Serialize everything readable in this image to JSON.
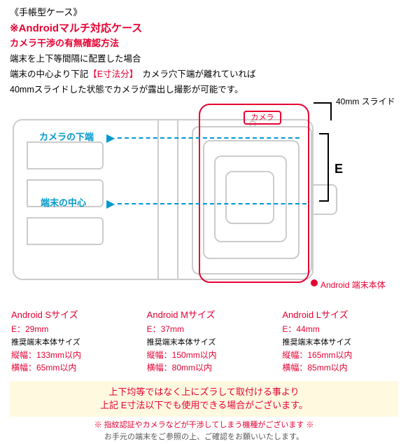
{
  "header": {
    "title": "《手帳型ケース》",
    "subtitle": "※Androidマルチ対応ケース",
    "method": "カメラ干渉の有無確認方法",
    "desc1": "端末を上下等間隔に配置した場合",
    "desc2a": "端末の中心より下記",
    "desc2b": "【E寸法分】",
    "desc2c": "　カメラ穴下端が離れていれば",
    "desc3": "40mmスライドした状態でカメラが露出し撮影が可能です。"
  },
  "diagram": {
    "camera_label": "カメラ",
    "label1": "カメラの下端",
    "label2": "端末の中心",
    "e_label": "E",
    "slide_label": "40mm スライド",
    "android_label": "Android 端末本体",
    "colors": {
      "red": "#e60033",
      "teal": "#0099cc",
      "gray": "#cccccc"
    }
  },
  "sizes": [
    {
      "title": "Android Sサイズ",
      "e": "E：29mm",
      "rec": "推奨端末本体サイズ",
      "h": "縦幅：133mm以内",
      "w": "横幅：65mm以内"
    },
    {
      "title": "Android Mサイズ",
      "e": "E：37mm",
      "rec": "推奨端末本体サイズ",
      "h": "縦幅：150mm以内",
      "w": "横幅：80mm以内"
    },
    {
      "title": "Android Lサイズ",
      "e": "E：44mm",
      "rec": "推奨端末本体サイズ",
      "h": "縦幅：165mm以内",
      "w": "横幅：85mm以内"
    }
  ],
  "note": {
    "line1": "上下均等ではなく上にズラして取付ける事より",
    "line2": "上記 E寸法以下でも使用できる場合がございます。"
  },
  "footer": {
    "warn": "※ 指紋認証やカメラなどが干渉してしまう機種がございます ※",
    "line2": "お手元の端末をご参照の上、ご確認をお願いいたします。"
  }
}
